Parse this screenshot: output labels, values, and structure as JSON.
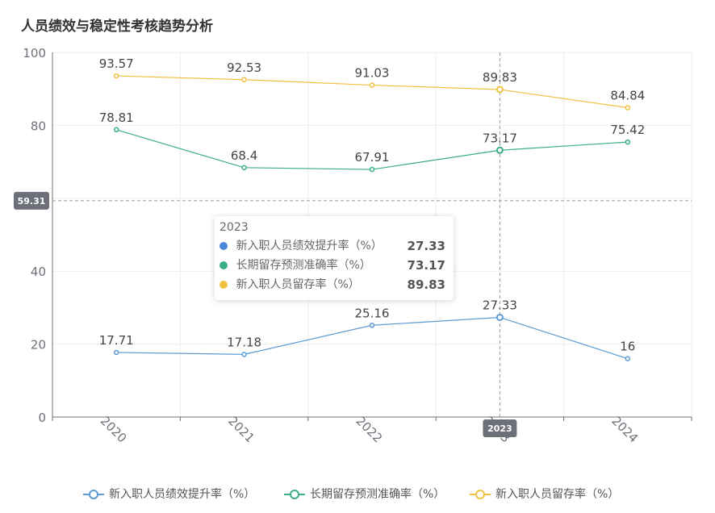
{
  "title": "人员绩效与稳定性考核趋势分析",
  "chart_data": {
    "type": "line",
    "categories": [
      "2020",
      "2021",
      "2022",
      "2023",
      "2024"
    ],
    "ylim": [
      0,
      100
    ],
    "yticks": [
      0,
      20,
      40,
      60,
      80,
      100
    ],
    "grid": true,
    "legend_position": "bottom",
    "series": [
      {
        "name": "新入职人员绩效提升率（%）",
        "color": "#5b9bd5",
        "values": [
          17.71,
          17.18,
          25.16,
          27.33,
          16
        ],
        "labels": [
          "17.71",
          "17.18",
          "25.16",
          "27.33",
          "16"
        ]
      },
      {
        "name": "长期留存预测准确率（%）",
        "color": "#3aae86",
        "values": [
          78.81,
          68.4,
          67.91,
          73.17,
          75.42
        ],
        "labels": [
          "78.81",
          "68.4",
          "67.91",
          "73.17",
          "75.42"
        ]
      },
      {
        "name": "新入职人员留存率（%）",
        "color": "#f0c040",
        "values": [
          93.57,
          92.53,
          91.03,
          89.83,
          84.84
        ],
        "labels": [
          "93.57",
          "92.53",
          "91.03",
          "89.83",
          "84.84"
        ]
      }
    ],
    "crosshair": {
      "x_label": "2023",
      "y_label": "59.31",
      "y_value": 59.31,
      "x_index": 3
    },
    "tooltip": {
      "title": "2023",
      "rows": [
        {
          "name": "新入职人员绩效提升率（%）",
          "value": "27.33",
          "color": "#4a86d8"
        },
        {
          "name": "长期留存预测准确率（%）",
          "value": "73.17",
          "color": "#3aae86"
        },
        {
          "name": "新入职人员留存率（%）",
          "value": "89.83",
          "color": "#f0c040"
        }
      ]
    }
  }
}
